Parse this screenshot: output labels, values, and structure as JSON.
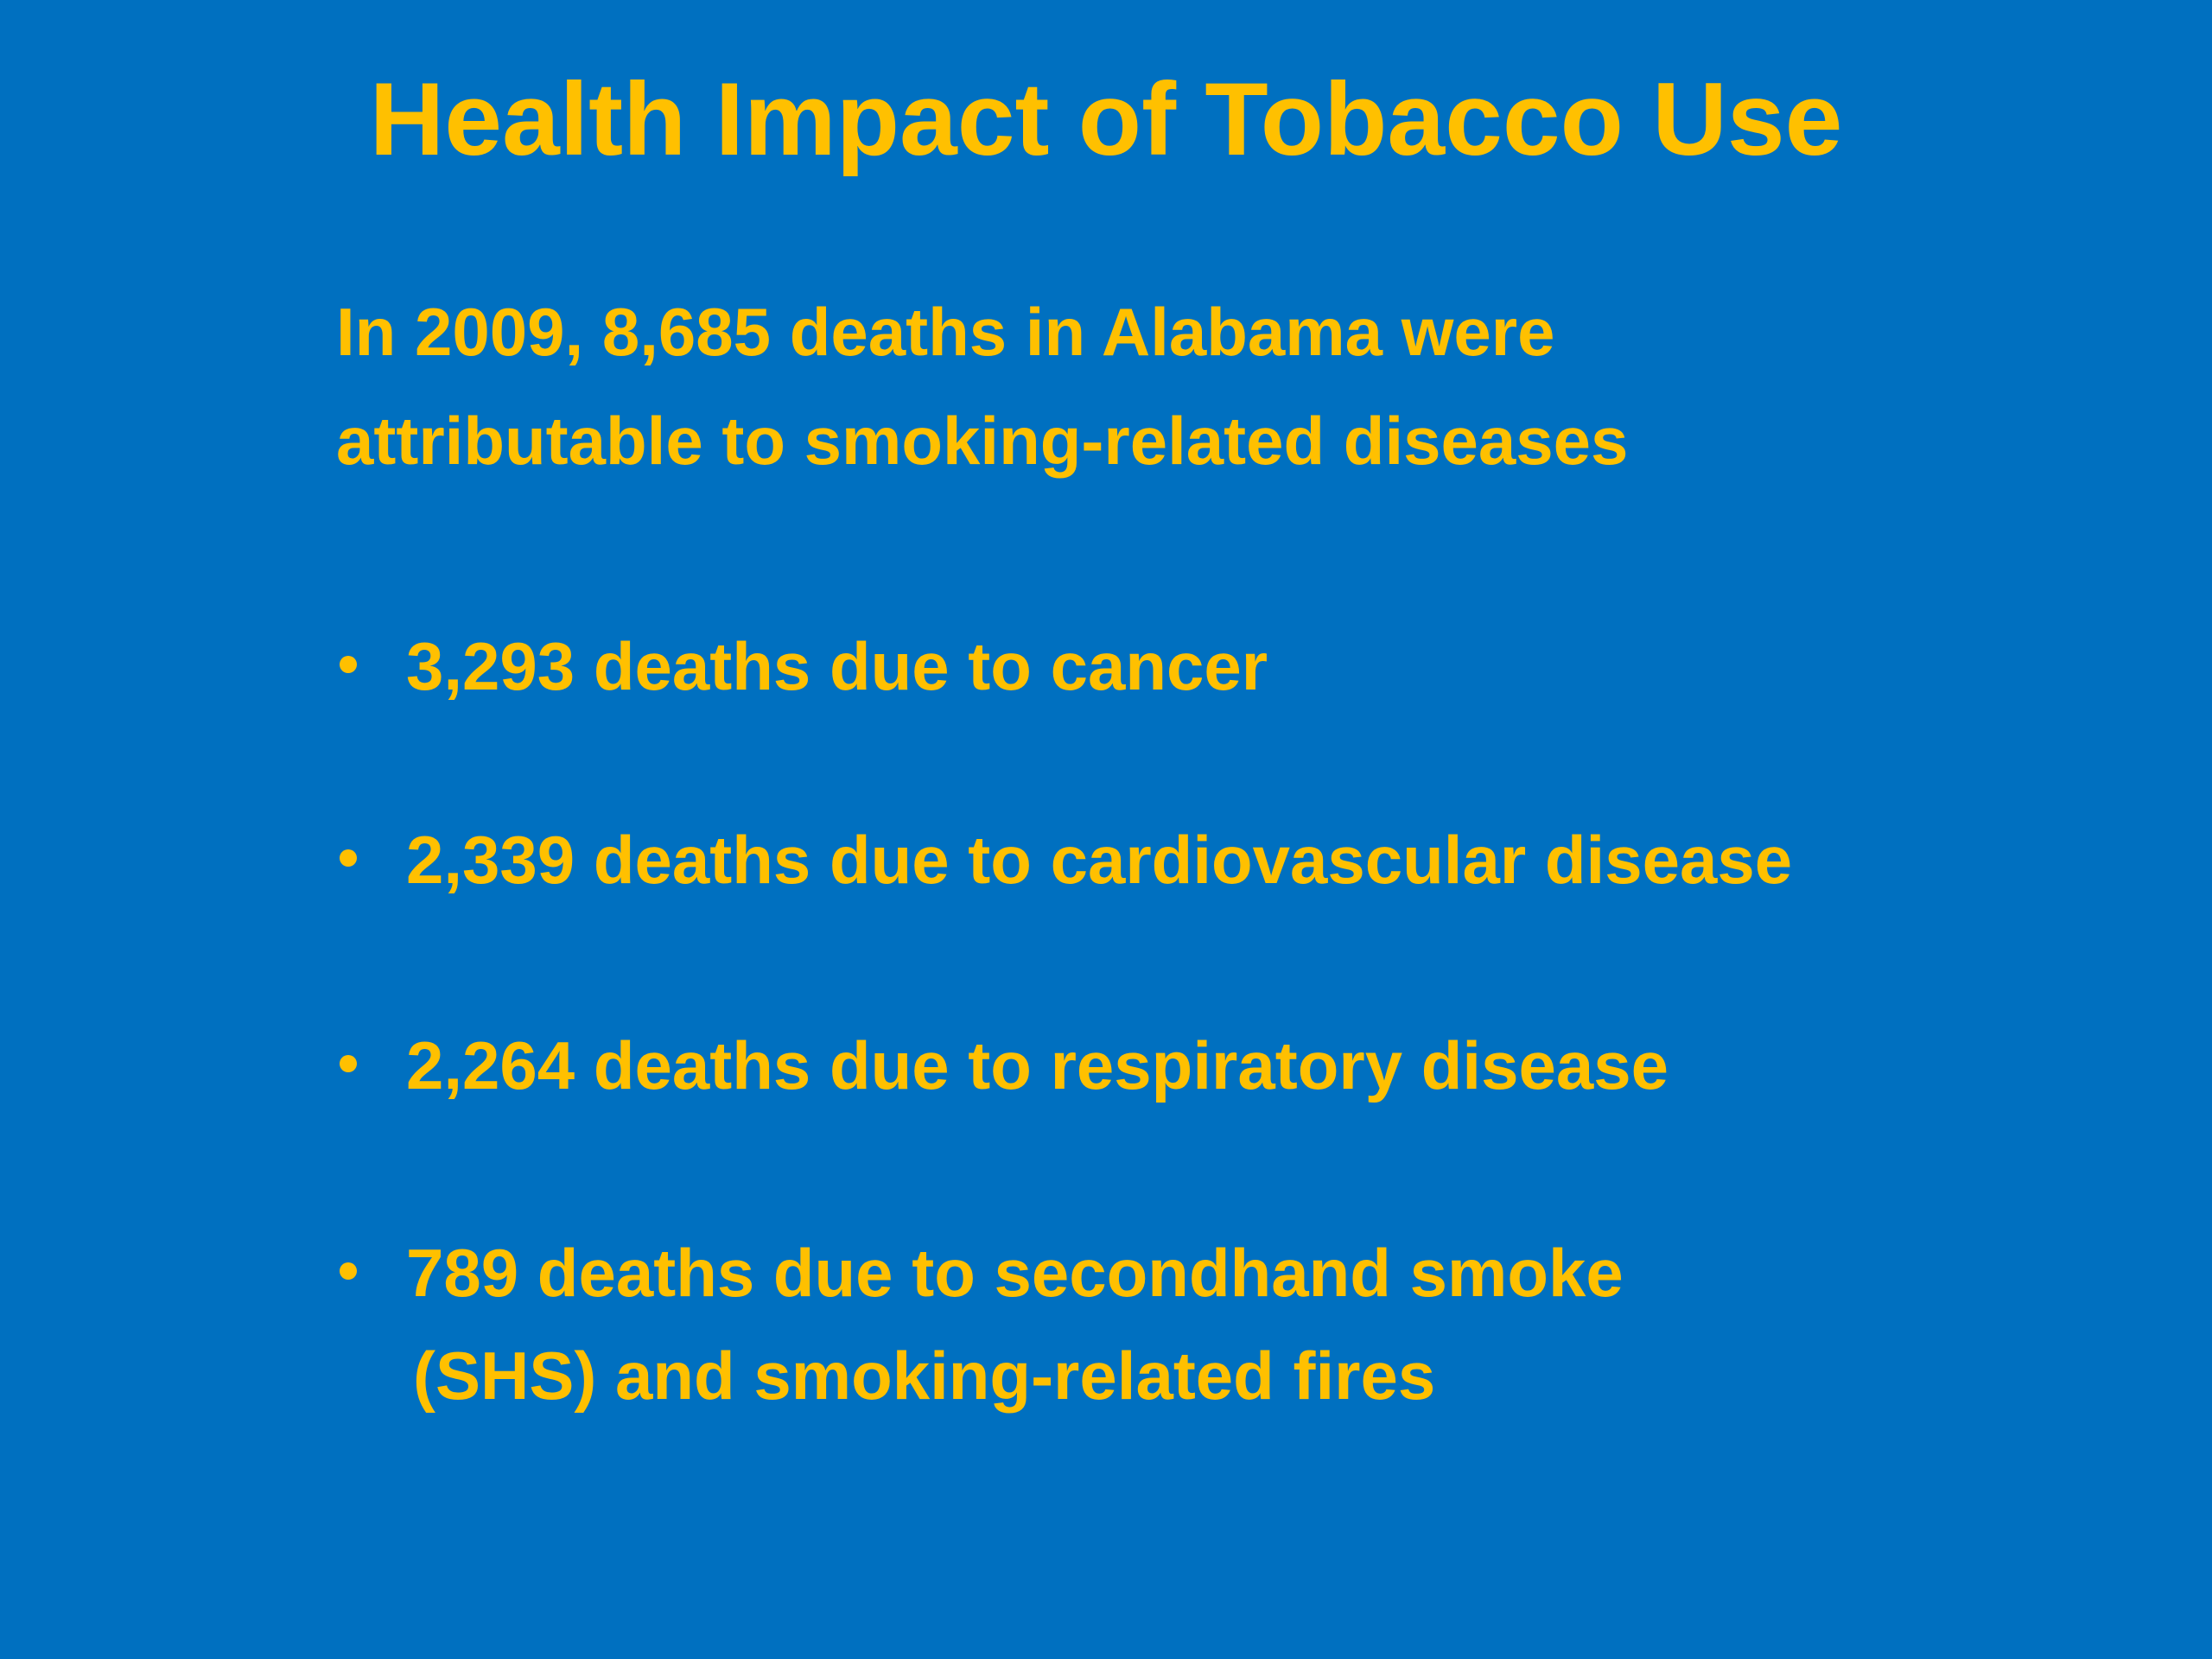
{
  "title": "Health Impact of Tobacco Use",
  "intro": {
    "lines": [
      "In 2009, 8,685 deaths in Alabama were",
      "attributable to smoking-related diseases"
    ]
  },
  "bullets": [
    {
      "lines": [
        "3,293 deaths due to cancer"
      ]
    },
    {
      "lines": [
        "2,339 deaths due to cardiovascular disease"
      ]
    },
    {
      "lines": [
        "2,264 deaths due to respiratory disease"
      ]
    },
    {
      "lines": [
        "789 deaths due to secondhand smoke",
        "(SHS) and smoking-related fires"
      ]
    }
  ]
}
